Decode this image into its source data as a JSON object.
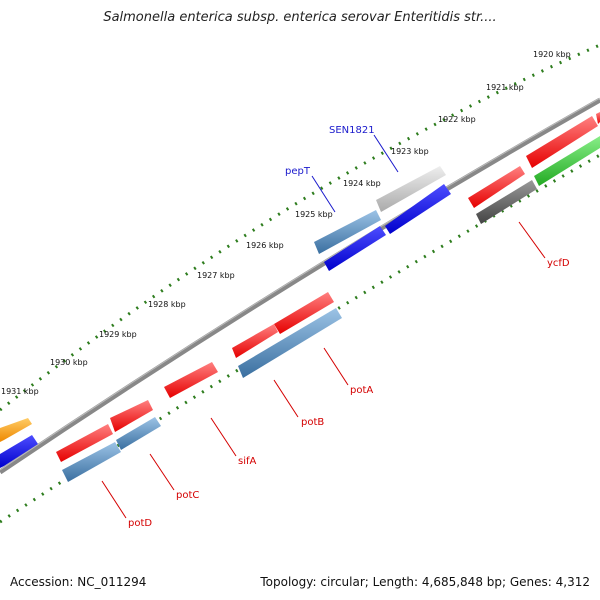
{
  "title": "Salmonella enterica subsp. enterica serovar Enteritidis str....",
  "footer": {
    "accession": "Accession: NC_011294",
    "summary": "Topology: circular; Length: 4,685,848 bp; Genes: 4,312"
  },
  "colors": {
    "backbone": "#888888",
    "tick": "#2e7d1e",
    "label_red": "#d40000",
    "label_blue": "#1a1acc",
    "gene_red": "#ff1a1a",
    "gene_blue": "#0000ee",
    "gene_steel": "#4682b4",
    "gene_gray": "#c8c8c8",
    "gene_dark": "#666666",
    "gene_green": "#33cc33",
    "gene_orange": "#ff9900"
  },
  "ticks": [
    "1920 kbp",
    "1921 kbp",
    "1922 kbp",
    "1923 kbp",
    "1924 kbp",
    "1925 kbp",
    "1926 kbp",
    "1927 kbp",
    "1928 kbp",
    "1929 kbp",
    "1930 kbp",
    "1931 kbp"
  ],
  "gene_labels": [
    {
      "name": "SEN1821",
      "color": "blue"
    },
    {
      "name": "pepT",
      "color": "blue"
    },
    {
      "name": "ycfD",
      "color": "red"
    },
    {
      "name": "potA",
      "color": "red"
    },
    {
      "name": "potB",
      "color": "red"
    },
    {
      "name": "sifA",
      "color": "red"
    },
    {
      "name": "potC",
      "color": "red"
    },
    {
      "name": "potD",
      "color": "red"
    }
  ]
}
